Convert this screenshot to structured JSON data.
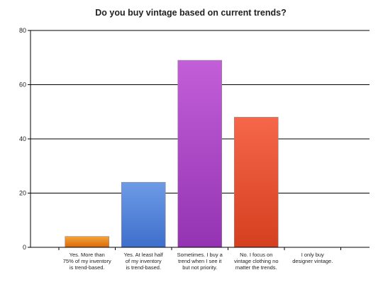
{
  "chart_data": {
    "type": "bar",
    "title": "Do you buy vintage based on current trends?",
    "xlabel": "",
    "ylabel": "",
    "ylim": [
      0,
      80
    ],
    "yticks": [
      0,
      20,
      40,
      60,
      80
    ],
    "grid": true,
    "legend": "none",
    "categories": [
      [
        "Yes. More than",
        "75% of my inventory",
        "is trend-based."
      ],
      [
        "Yes. At least half",
        "of my inventory",
        "is trend-based."
      ],
      [
        "Sometimes. I buy a",
        "trend when I see it",
        "but not priority."
      ],
      [
        "No. I focus on",
        "vintage clothing no",
        "matter the trends."
      ],
      [
        "I only buy",
        "designer vintage."
      ]
    ],
    "values": [
      4,
      24,
      69,
      48,
      0
    ],
    "colors": [
      {
        "top": "#f5a23c",
        "bottom": "#d96a08"
      },
      {
        "top": "#6e9be6",
        "bottom": "#3d6fcc"
      },
      {
        "top": "#c25ed8",
        "bottom": "#9434b2"
      },
      {
        "top": "#f6664a",
        "bottom": "#d4401f"
      },
      {
        "top": "#8fc95a",
        "bottom": "#5a9a2a"
      }
    ]
  }
}
